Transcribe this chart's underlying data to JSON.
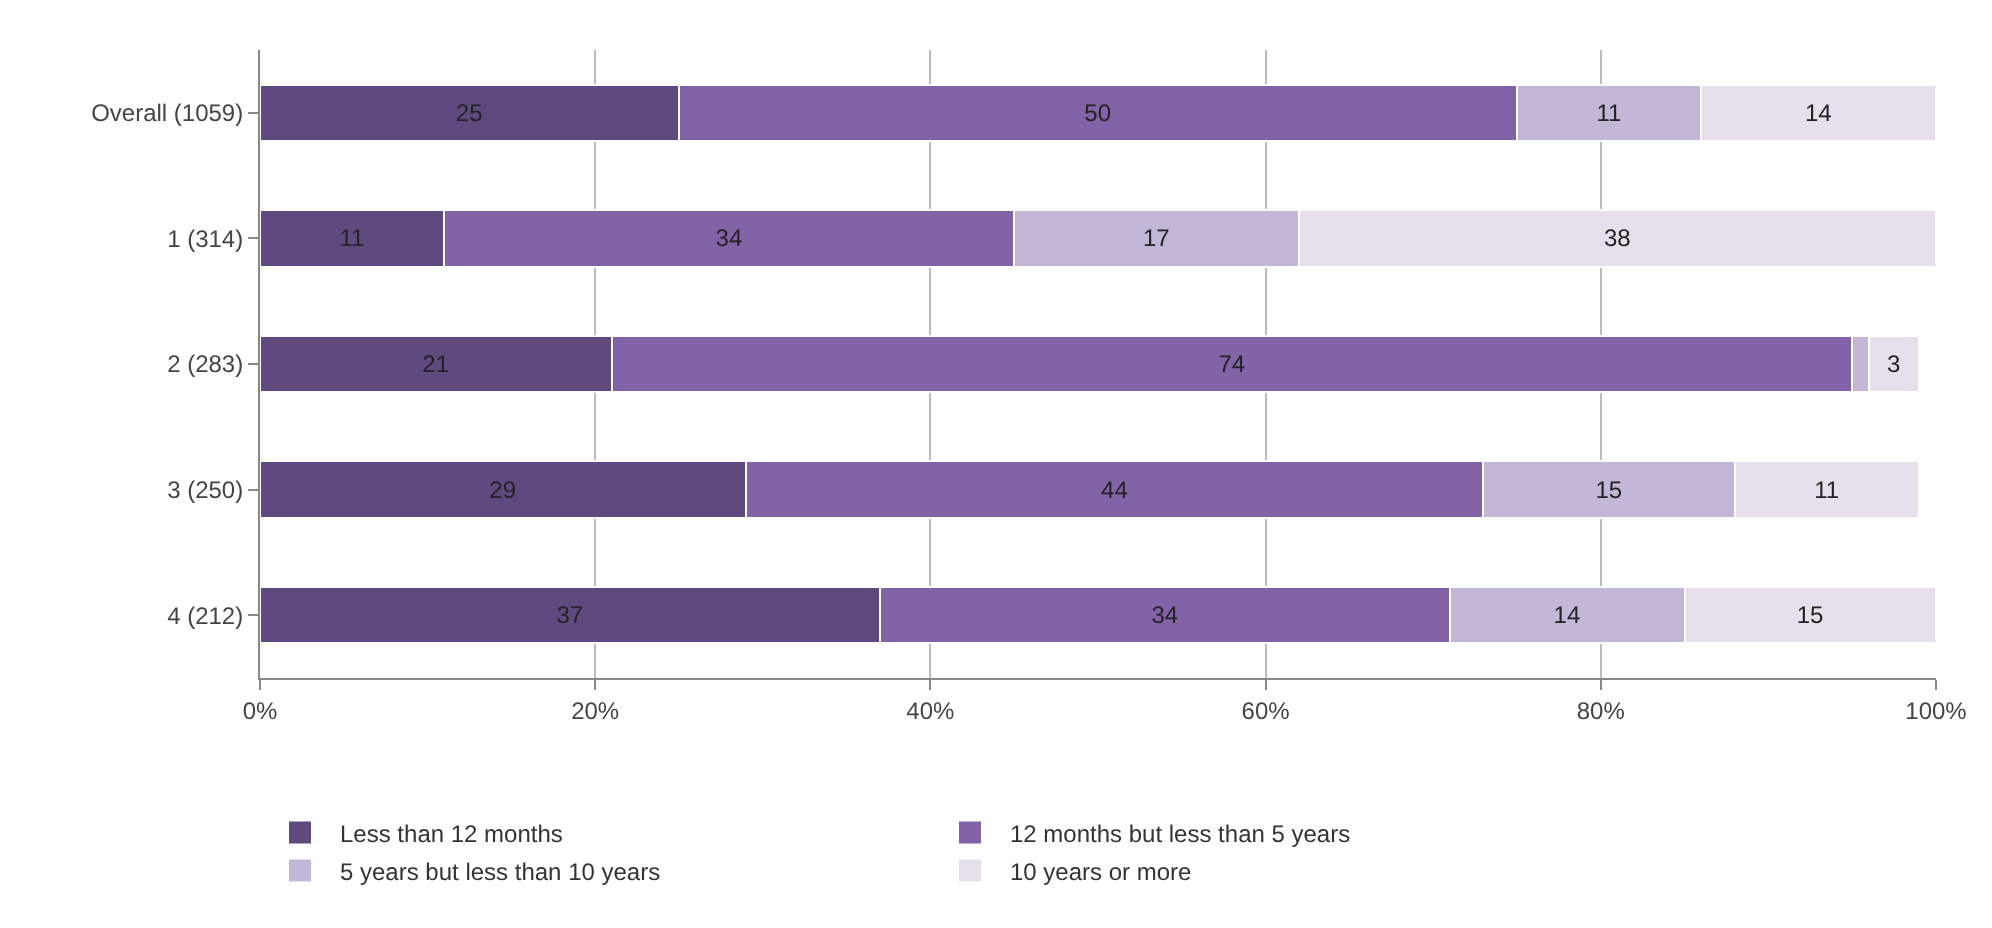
{
  "chart_data": {
    "type": "bar",
    "orientation": "horizontal",
    "stacked": true,
    "categories": [
      "Overall (1059)",
      "1 (314)",
      "2 (283)",
      "3 (250)",
      "4 (212)"
    ],
    "series": [
      {
        "name": "Less than 12 months",
        "color": "#5e4a7e",
        "values": [
          25,
          11,
          21,
          29,
          37
        ],
        "value_labels": [
          "25",
          "11",
          "21",
          "29",
          "37"
        ]
      },
      {
        "name": "12 months but less than 5 years",
        "color": "#8363a8",
        "values": [
          50,
          34,
          74,
          44,
          34
        ],
        "value_labels": [
          "50",
          "34",
          "74",
          "44",
          "34"
        ]
      },
      {
        "name": "5 years but less than 10 years",
        "color": "#c4b6d6",
        "values": [
          11,
          17,
          1,
          15,
          14
        ],
        "value_labels": [
          "11",
          "17",
          null,
          "15",
          "14"
        ]
      },
      {
        "name": "10 years or more",
        "color": "#e6e0ec",
        "values": [
          14,
          38,
          3,
          11,
          15
        ],
        "value_labels": [
          "14",
          "38",
          "3",
          "11",
          "15"
        ]
      }
    ],
    "xlim": [
      0,
      100
    ],
    "xticks": [
      {
        "value": 0,
        "label": "0%"
      },
      {
        "value": 20,
        "label": "20%"
      },
      {
        "value": 40,
        "label": "40%"
      },
      {
        "value": 60,
        "label": "60%"
      },
      {
        "value": 80,
        "label": "80%"
      },
      {
        "value": 100,
        "label": "100%"
      }
    ],
    "grid": "x",
    "legend": "bottom"
  }
}
